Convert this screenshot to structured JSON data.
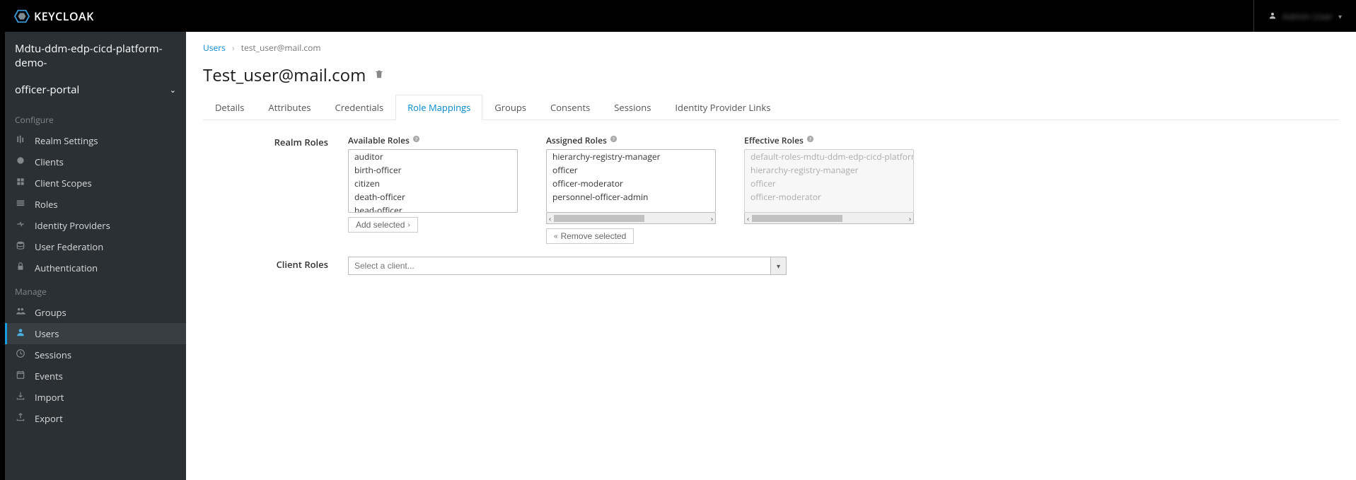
{
  "brand": "KEYCLOAK",
  "brand_colors": {
    "outer": "#3a99d8",
    "inner": "#808a92"
  },
  "topbar_user": {
    "name": "Admin User"
  },
  "realm_name": "Mdtu-ddm-edp-cicd-platform-demo-",
  "realm_dropdown_label": "officer-portal",
  "sidebar": {
    "configure_label": "Configure",
    "manage_label": "Manage",
    "configure": [
      {
        "key": "realm-settings",
        "label": "Realm Settings"
      },
      {
        "key": "clients",
        "label": "Clients"
      },
      {
        "key": "client-scopes",
        "label": "Client Scopes"
      },
      {
        "key": "roles",
        "label": "Roles"
      },
      {
        "key": "identity-providers",
        "label": "Identity Providers"
      },
      {
        "key": "user-federation",
        "label": "User Federation"
      },
      {
        "key": "authentication",
        "label": "Authentication"
      }
    ],
    "manage": [
      {
        "key": "groups",
        "label": "Groups"
      },
      {
        "key": "users",
        "label": "Users"
      },
      {
        "key": "sessions",
        "label": "Sessions"
      },
      {
        "key": "events",
        "label": "Events"
      },
      {
        "key": "import",
        "label": "Import"
      },
      {
        "key": "export",
        "label": "Export"
      }
    ],
    "active_key": "users"
  },
  "breadcrumb": {
    "parent": "Users",
    "current": "test_user@mail.com"
  },
  "page_title": "Test_user@mail.com",
  "tabs": [
    "Details",
    "Attributes",
    "Credentials",
    "Role Mappings",
    "Groups",
    "Consents",
    "Sessions",
    "Identity Provider Links"
  ],
  "active_tab": "Role Mappings",
  "role_mappings": {
    "realm_roles_label": "Realm Roles",
    "available_label": "Available Roles",
    "assigned_label": "Assigned Roles",
    "effective_label": "Effective Roles",
    "add_selected_label": "Add selected",
    "remove_selected_label": "Remove selected",
    "available": [
      "auditor",
      "birth-officer",
      "citizen",
      "death-officer",
      "head-officer"
    ],
    "assigned": [
      "hierarchy-registry-manager",
      "officer",
      "officer-moderator",
      "personnel-officer-admin"
    ],
    "effective": [
      "default-roles-mdtu-ddm-edp-cicd-platform-demo",
      "hierarchy-registry-manager",
      "officer",
      "officer-moderator"
    ]
  },
  "client_roles": {
    "label": "Client Roles",
    "placeholder": "Select a client..."
  }
}
